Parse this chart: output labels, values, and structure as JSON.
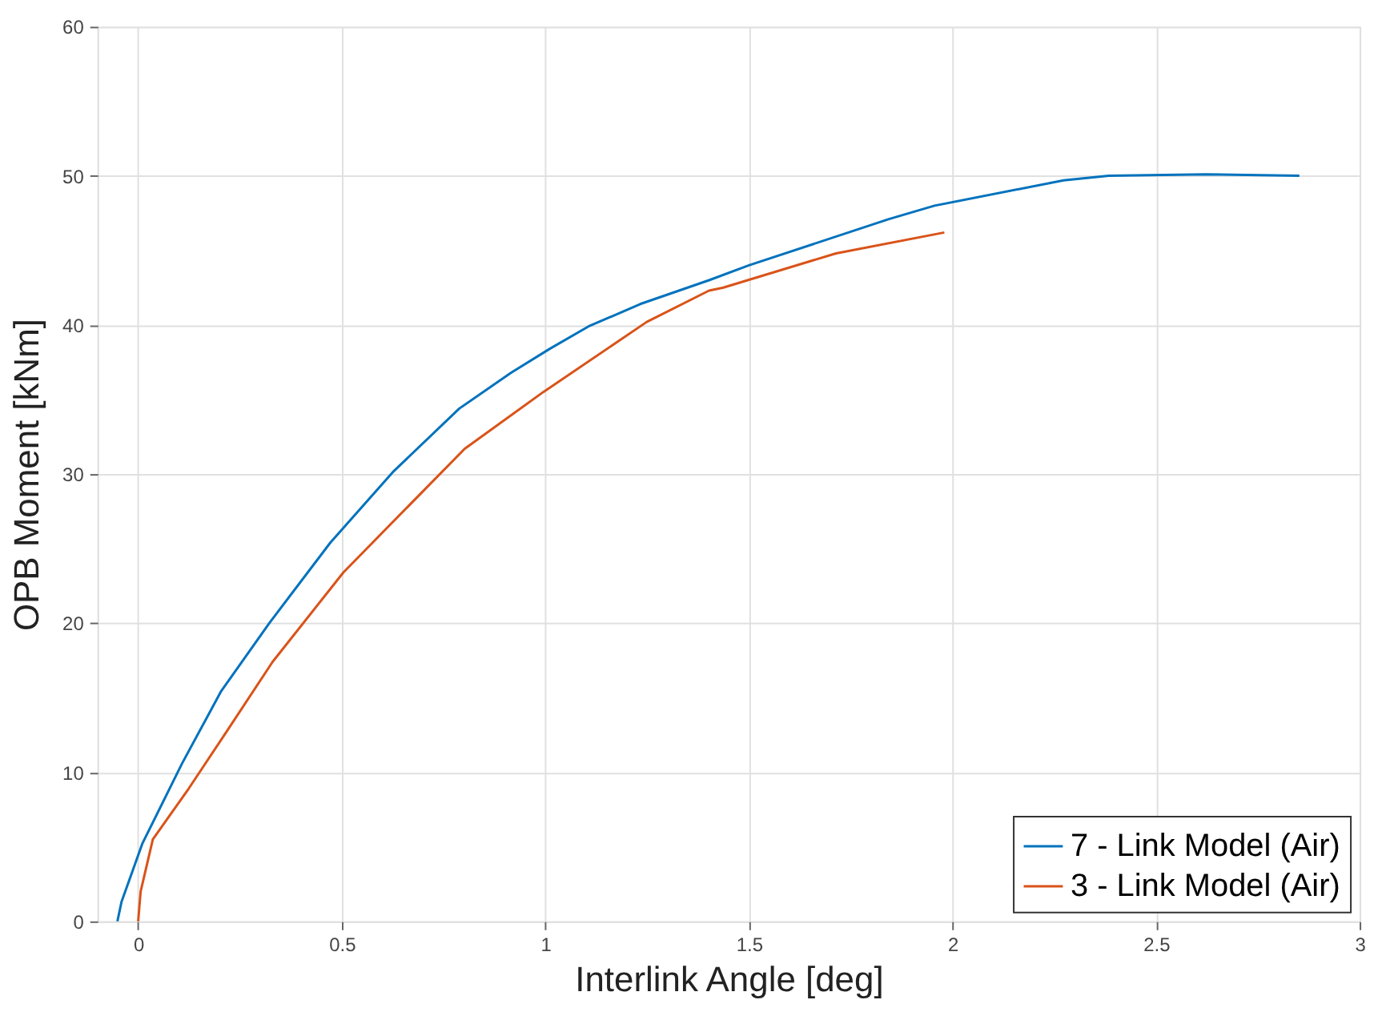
{
  "chart_data": {
    "type": "line",
    "xlabel": "Interlink Angle [deg]",
    "ylabel": "OPB Moment [kNm]",
    "xlim": [
      -0.1,
      3
    ],
    "xticks": [
      0,
      0.5,
      1,
      1.5,
      2,
      2.5,
      3
    ],
    "ylim": [
      0,
      60
    ],
    "yticks": [
      0,
      10,
      20,
      30,
      40,
      50,
      60
    ],
    "grid": true,
    "legend": "bottom right",
    "marker": "none",
    "line_style": "solid",
    "series": [
      {
        "name": "7 - Link Model (Air)",
        "color": "#0072bd",
        "x": [
          -0.051,
          -0.041,
          0.01,
          0.108,
          0.203,
          0.322,
          0.472,
          0.628,
          0.789,
          0.916,
          1.011,
          1.106,
          1.233,
          1.402,
          1.5,
          1.844,
          1.956,
          2.273,
          2.384,
          2.622,
          2.852
        ],
        "values": [
          0,
          1.3,
          5.2,
          10.6,
          15.4,
          20.0,
          25.4,
          30.2,
          34.4,
          36.8,
          38.4,
          39.9,
          41.4,
          43.0,
          44.0,
          47.1,
          48.0,
          49.7,
          50.0,
          50.1,
          50.0
        ]
      },
      {
        "name": "3 - Link Model (Air)",
        "color": "#d95319",
        "x": [
          0,
          0.006,
          0.036,
          0.124,
          0.219,
          0.33,
          0.504,
          0.802,
          0.995,
          1.249,
          1.402,
          1.437,
          1.714,
          1.98
        ],
        "values": [
          0,
          2.0,
          5.5,
          8.9,
          12.8,
          17.4,
          23.4,
          31.7,
          35.5,
          40.2,
          42.3,
          42.5,
          44.8,
          46.2
        ]
      }
    ]
  }
}
